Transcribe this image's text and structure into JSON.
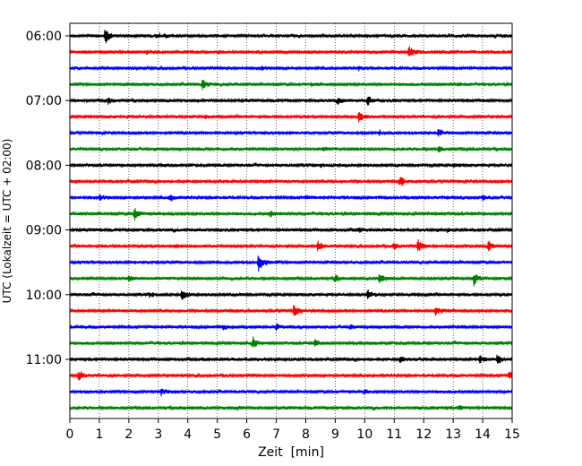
{
  "chart_data": {
    "type": "line",
    "subtype": "helicorder",
    "title": "",
    "xlabel": "Zeit  [min]",
    "ylabel": "UTC (Lokalzeit = UTC + 02:00)",
    "x_ticks": [
      0,
      1,
      2,
      3,
      4,
      5,
      6,
      7,
      8,
      9,
      10,
      11,
      12,
      13,
      14,
      15
    ],
    "xlim": [
      0,
      15
    ],
    "y_ticks": [
      {
        "time": "06:00",
        "row": 0
      },
      {
        "time": "07:00",
        "row": 4
      },
      {
        "time": "08:00",
        "row": 8
      },
      {
        "time": "09:00",
        "row": 12
      },
      {
        "time": "10:00",
        "row": 16
      },
      {
        "time": "11:00",
        "row": 20
      }
    ],
    "row_minutes": 15,
    "grid": "vertical dotted at each minute",
    "color_cycle": [
      "#000000",
      "#ff0000",
      "#0000ff",
      "#008000"
    ],
    "rows": [
      {
        "start": "06:00",
        "color": "#000000",
        "events": [
          {
            "t": 1.2,
            "a": 2.6
          },
          {
            "t": 2.9,
            "a": 0.5
          },
          {
            "t": 3.2,
            "a": 0.5
          }
        ]
      },
      {
        "start": "06:15",
        "color": "#ff0000",
        "events": [
          {
            "t": 11.5,
            "a": 2.0
          },
          {
            "t": 2.6,
            "a": 0.5
          },
          {
            "t": 5.0,
            "a": 0.4
          }
        ]
      },
      {
        "start": "06:30",
        "color": "#0000ff",
        "events": [
          {
            "t": 6.5,
            "a": 0.5
          },
          {
            "t": 9.8,
            "a": 0.5
          }
        ]
      },
      {
        "start": "06:45",
        "color": "#008000",
        "events": [
          {
            "t": 4.5,
            "a": 1.7
          },
          {
            "t": 8.2,
            "a": 0.5
          },
          {
            "t": 13.2,
            "a": 0.5
          }
        ]
      },
      {
        "start": "07:00",
        "color": "#000000",
        "events": [
          {
            "t": 1.3,
            "a": 1.0
          },
          {
            "t": 9.1,
            "a": 1.0
          },
          {
            "t": 10.1,
            "a": 1.7
          }
        ]
      },
      {
        "start": "07:15",
        "color": "#ff0000",
        "events": [
          {
            "t": 9.8,
            "a": 2.0
          },
          {
            "t": 4.6,
            "a": 0.6
          }
        ]
      },
      {
        "start": "07:30",
        "color": "#0000ff",
        "events": [
          {
            "t": 12.5,
            "a": 1.1
          },
          {
            "t": 10.5,
            "a": 0.7
          }
        ]
      },
      {
        "start": "07:45",
        "color": "#008000",
        "events": [
          {
            "t": 12.5,
            "a": 0.8
          },
          {
            "t": 8.6,
            "a": 0.5
          }
        ]
      },
      {
        "start": "08:00",
        "color": "#000000",
        "events": [
          {
            "t": 13.0,
            "a": 0.6
          },
          {
            "t": 8.5,
            "a": 0.5
          }
        ]
      },
      {
        "start": "08:15",
        "color": "#ff0000",
        "events": [
          {
            "t": 11.2,
            "a": 1.8
          }
        ]
      },
      {
        "start": "08:30",
        "color": "#0000ff",
        "events": [
          {
            "t": 1.0,
            "a": 0.9
          },
          {
            "t": 3.4,
            "a": 1.1
          },
          {
            "t": 8.0,
            "a": 0.9
          },
          {
            "t": 14.0,
            "a": 0.7
          }
        ]
      },
      {
        "start": "08:45",
        "color": "#008000",
        "events": [
          {
            "t": 2.2,
            "a": 2.0
          },
          {
            "t": 6.8,
            "a": 0.8
          }
        ]
      },
      {
        "start": "09:00",
        "color": "#000000",
        "events": [
          {
            "t": 9.8,
            "a": 0.6
          },
          {
            "t": 12.8,
            "a": 0.6
          }
        ]
      },
      {
        "start": "09:15",
        "color": "#ff0000",
        "events": [
          {
            "t": 8.4,
            "a": 1.6
          },
          {
            "t": 11.0,
            "a": 1.3
          },
          {
            "t": 11.8,
            "a": 2.4
          },
          {
            "t": 14.2,
            "a": 1.8
          },
          {
            "t": 3.6,
            "a": 0.6
          }
        ]
      },
      {
        "start": "09:30",
        "color": "#0000ff",
        "events": [
          {
            "t": 6.4,
            "a": 3.2
          }
        ]
      },
      {
        "start": "09:45",
        "color": "#008000",
        "events": [
          {
            "t": 2.0,
            "a": 1.1
          },
          {
            "t": 9.0,
            "a": 1.2
          },
          {
            "t": 10.5,
            "a": 1.8
          },
          {
            "t": 13.7,
            "a": 2.2
          }
        ]
      },
      {
        "start": "10:00",
        "color": "#000000",
        "events": [
          {
            "t": 3.8,
            "a": 1.8
          },
          {
            "t": 10.1,
            "a": 1.6
          },
          {
            "t": 2.7,
            "a": 0.7
          }
        ]
      },
      {
        "start": "10:15",
        "color": "#ff0000",
        "events": [
          {
            "t": 7.6,
            "a": 2.0
          },
          {
            "t": 12.4,
            "a": 1.5
          }
        ]
      },
      {
        "start": "10:30",
        "color": "#0000ff",
        "events": [
          {
            "t": 5.2,
            "a": 0.9
          },
          {
            "t": 7.0,
            "a": 0.9
          },
          {
            "t": 9.5,
            "a": 0.6
          }
        ]
      },
      {
        "start": "10:45",
        "color": "#008000",
        "events": [
          {
            "t": 6.2,
            "a": 1.9
          },
          {
            "t": 8.3,
            "a": 1.2
          }
        ]
      },
      {
        "start": "11:00",
        "color": "#000000",
        "events": [
          {
            "t": 11.2,
            "a": 1.1
          },
          {
            "t": 13.9,
            "a": 1.3
          },
          {
            "t": 14.5,
            "a": 1.7
          }
        ]
      },
      {
        "start": "11:15",
        "color": "#ff0000",
        "events": [
          {
            "t": 0.3,
            "a": 2.0
          },
          {
            "t": 14.9,
            "a": 1.5
          }
        ]
      },
      {
        "start": "11:30",
        "color": "#0000ff",
        "events": [
          {
            "t": 3.1,
            "a": 1.1
          },
          {
            "t": 10.0,
            "a": 0.6
          }
        ]
      },
      {
        "start": "11:45",
        "color": "#008000",
        "events": [
          {
            "t": 13.2,
            "a": 0.7
          },
          {
            "t": 5.7,
            "a": 0.5
          }
        ]
      }
    ]
  }
}
